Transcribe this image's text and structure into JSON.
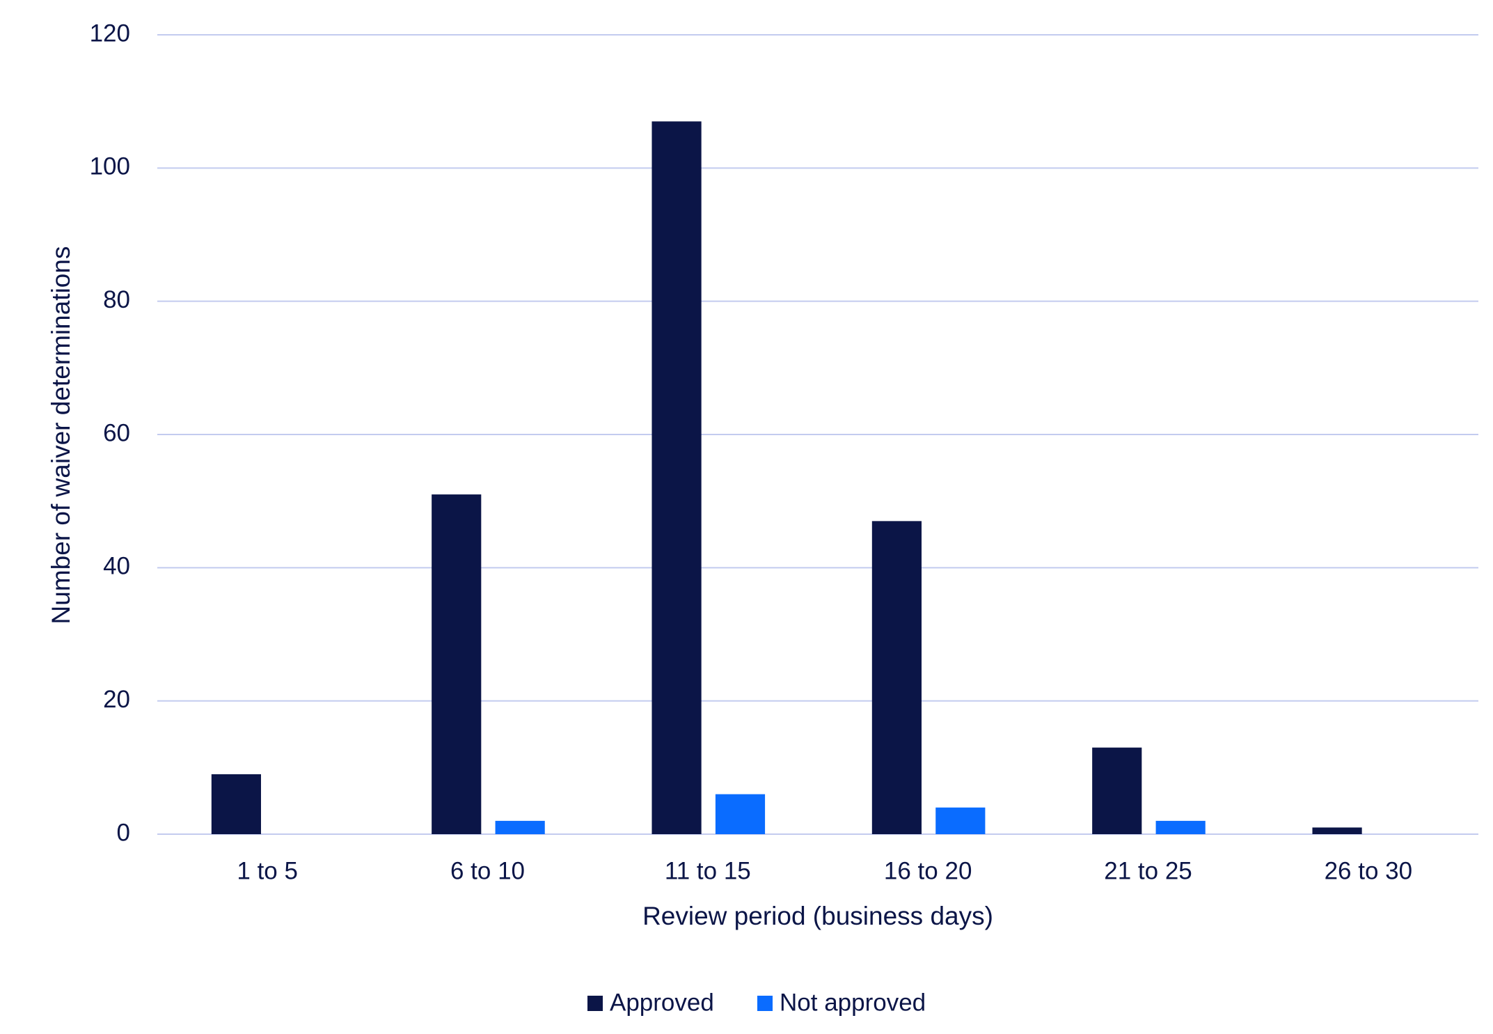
{
  "chart_data": {
    "type": "bar",
    "x_label": "Review period (business days)",
    "y_label": "Number of waiver determinations",
    "categories": [
      "1 to 5",
      "6 to 10",
      "11 to 15",
      "16 to 20",
      "21 to 25",
      "26 to 30"
    ],
    "series": [
      {
        "name": "Approved",
        "color": "#0b1547",
        "values": [
          9,
          51,
          107,
          47,
          13,
          1
        ]
      },
      {
        "name": "Not approved",
        "color": "#0a6cff",
        "values": [
          0,
          2,
          6,
          4,
          2,
          0
        ]
      }
    ],
    "ylim": [
      0,
      120
    ],
    "yticks": [
      0,
      20,
      40,
      60,
      80,
      100,
      120
    ],
    "grid": true,
    "legend": "bottom"
  }
}
